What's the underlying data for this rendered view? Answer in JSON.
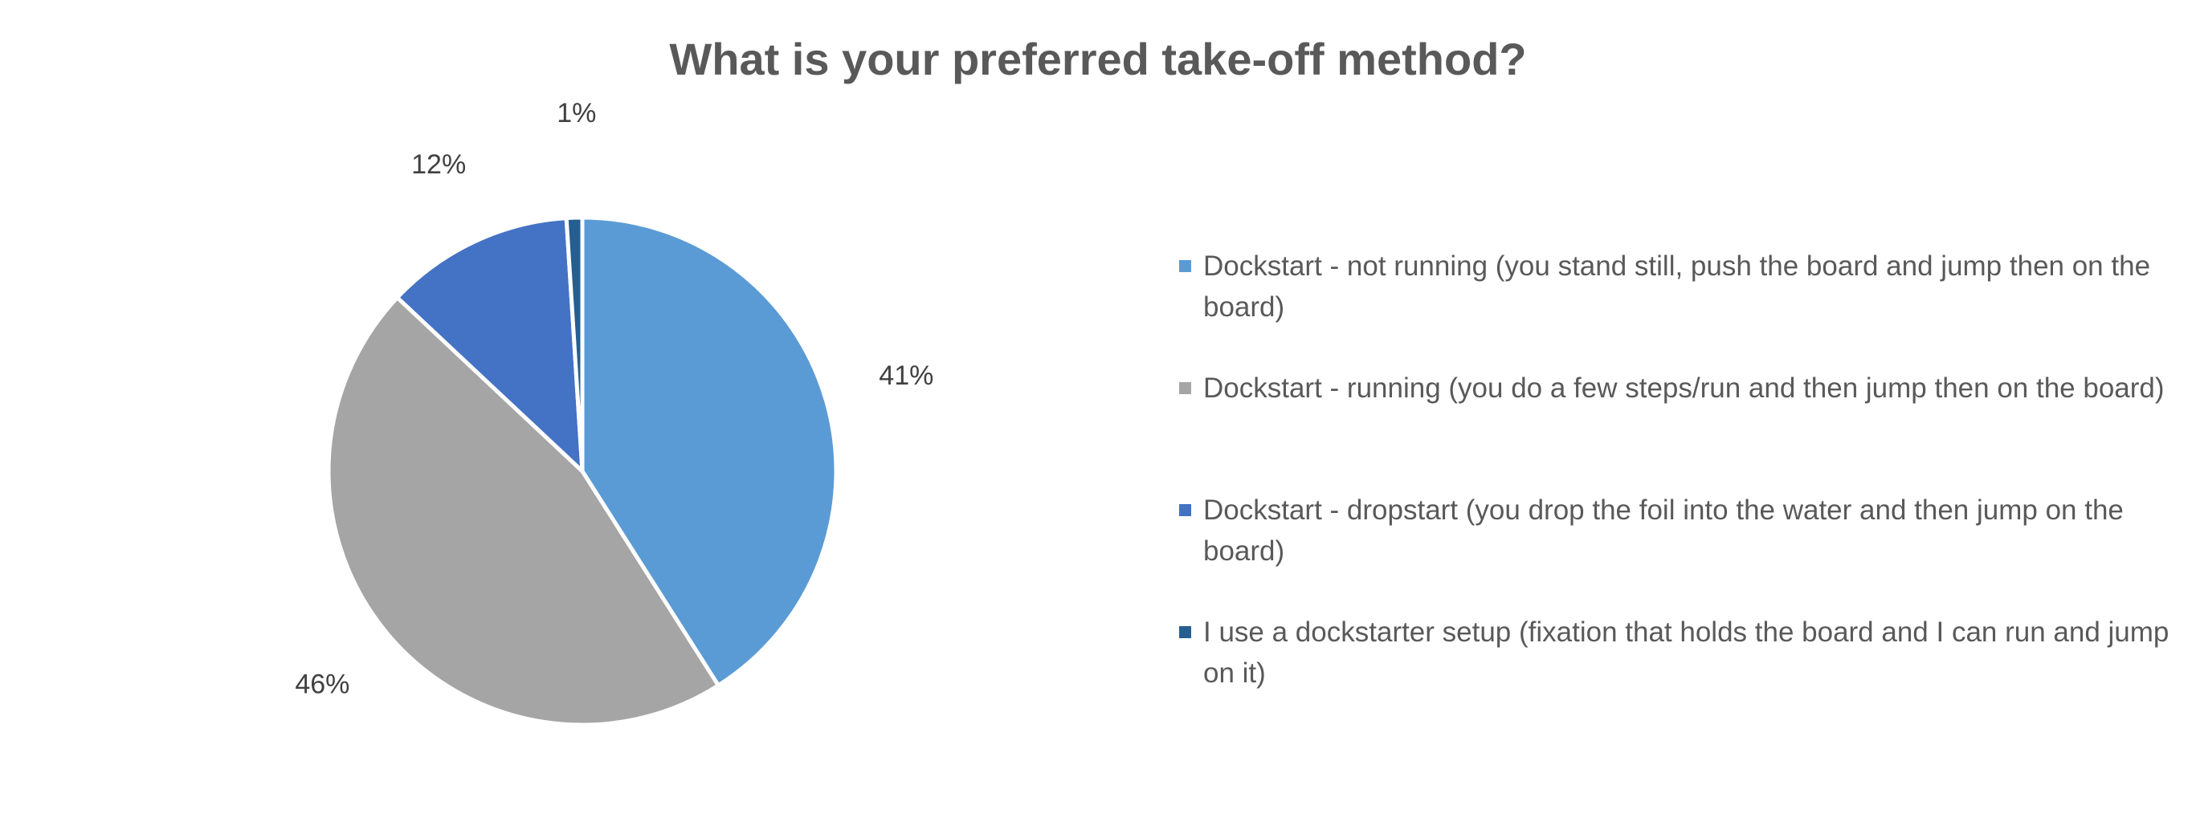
{
  "chart_data": {
    "type": "pie",
    "title": "What is your preferred take-off method?",
    "categories": [
      "Dockstart - not running (you stand still, push the board and jump then on the board)",
      "Dockstart - running (you do a few steps/run and then jump then on the board)",
      "Dockstart - dropstart (you drop the foil into the water and then jump on the board)",
      "I use a dockstarter setup (fixation that holds the board and I can run and jump on it)"
    ],
    "values": [
      41,
      46,
      12,
      1
    ],
    "labels": [
      "41%",
      "46%",
      "12%",
      "1%"
    ],
    "colors": [
      "#5B9BD5",
      "#A5A5A5",
      "#4472C4",
      "#255E91"
    ],
    "legend_position": "right"
  }
}
